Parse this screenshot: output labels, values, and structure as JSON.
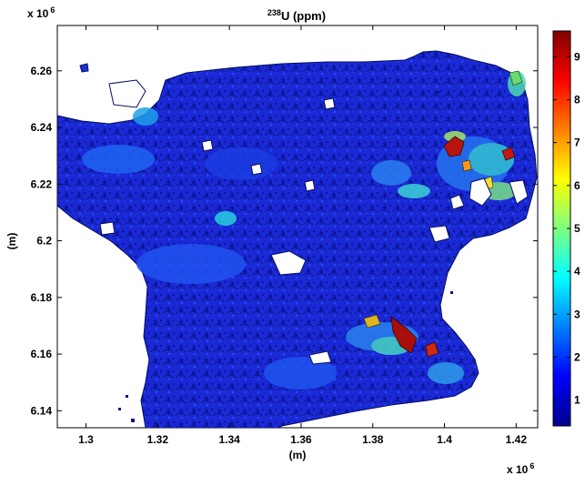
{
  "chart_data": {
    "type": "heatmap",
    "title_sup": "238",
    "title": "U (ppm)",
    "xlabel": "(m)",
    "ylabel": "(m)",
    "x_multiplier": "x 10",
    "x_multiplier_exp": "6",
    "y_multiplier": "x 10",
    "y_multiplier_exp": "6",
    "xlim": [
      1.292,
      1.426
    ],
    "ylim": [
      6.134,
      6.276
    ],
    "x_ticks": [
      1.3,
      1.32,
      1.34,
      1.36,
      1.38,
      1.4,
      1.42
    ],
    "x_tick_labels": [
      "1.3",
      "1.32",
      "1.34",
      "1.36",
      "1.38",
      "1.4",
      "1.42"
    ],
    "y_ticks": [
      6.14,
      6.16,
      6.18,
      6.2,
      6.22,
      6.24,
      6.26
    ],
    "y_tick_labels": [
      "6.14",
      "6.16",
      "6.18",
      "6.2",
      "6.22",
      "6.24",
      "6.26"
    ],
    "colorbar": {
      "range": [
        0.4,
        9.6
      ],
      "ticks": [
        1,
        2,
        3,
        4,
        5,
        6,
        7,
        8,
        9
      ],
      "tick_labels": [
        "1",
        "2",
        "3",
        "4",
        "5",
        "6",
        "7",
        "8",
        "9"
      ],
      "colormap": "jet"
    },
    "dominant_value": 1.3,
    "hotspots": [
      {
        "x": 1.412,
        "y": 6.232,
        "value": 9.0
      },
      {
        "x": 1.418,
        "y": 6.229,
        "value": 8.0
      },
      {
        "x": 1.396,
        "y": 6.167,
        "value": 8.5
      },
      {
        "x": 1.39,
        "y": 6.175,
        "value": 5.0
      },
      {
        "x": 1.42,
        "y": 6.262,
        "value": 4.5
      },
      {
        "x": 1.405,
        "y": 6.22,
        "value": 3.5
      },
      {
        "x": 1.326,
        "y": 6.24,
        "value": 3.0
      }
    ]
  }
}
